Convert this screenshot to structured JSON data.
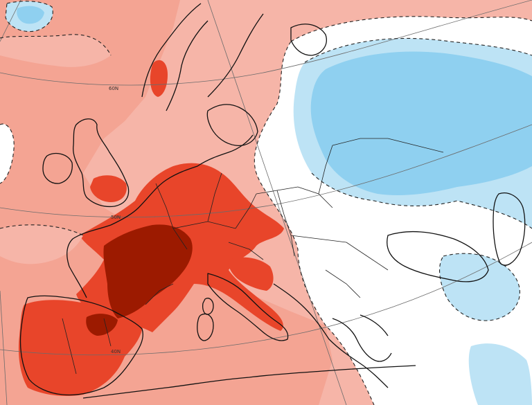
{
  "map": {
    "graticule_labels": {
      "lat60": "60N",
      "lat50": "50N",
      "lat40": "40N"
    },
    "colors": {
      "very_warm": "#9c1a00",
      "warm_strong": "#e8452a",
      "warm": "#f0846e",
      "slightly_warm": "#f6b5a8",
      "neutral": "#ffffff",
      "slightly_cold": "#bde3f5",
      "cold": "#8fd0f0",
      "contour": "#222222",
      "coastline": "#111111"
    }
  }
}
